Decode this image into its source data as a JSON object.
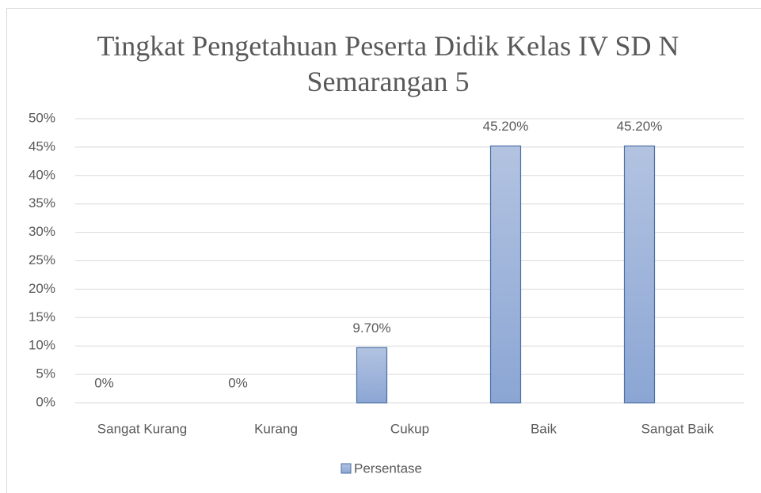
{
  "chart_data": {
    "type": "bar",
    "title": "Tingkat Pengetahuan Peserta Didik Kelas IV SD N Semarangan 5",
    "categories": [
      "Sangat Kurang",
      "Kurang",
      "Cukup",
      "Baik",
      "Sangat Baik"
    ],
    "series": [
      {
        "name": "Persentase",
        "color": "#9bb2dc",
        "values": [
          0,
          0,
          9.7,
          45.2,
          45.2
        ],
        "value_labels": [
          "0%",
          "0%",
          "9.70%",
          "45.20%",
          "45.20%"
        ]
      }
    ],
    "ylim": [
      0,
      50
    ],
    "yticks": [
      {
        "value": 0,
        "label": "0%"
      },
      {
        "value": 5,
        "label": "5%"
      },
      {
        "value": 10,
        "label": "10%"
      },
      {
        "value": 15,
        "label": "15%"
      },
      {
        "value": 20,
        "label": "20%"
      },
      {
        "value": 25,
        "label": "25%"
      },
      {
        "value": 30,
        "label": "30%"
      },
      {
        "value": 35,
        "label": "35%"
      },
      {
        "value": 40,
        "label": "40%"
      },
      {
        "value": 45,
        "label": "45%"
      },
      {
        "value": 50,
        "label": "50%"
      }
    ],
    "grid": true,
    "legend": "bottom"
  }
}
